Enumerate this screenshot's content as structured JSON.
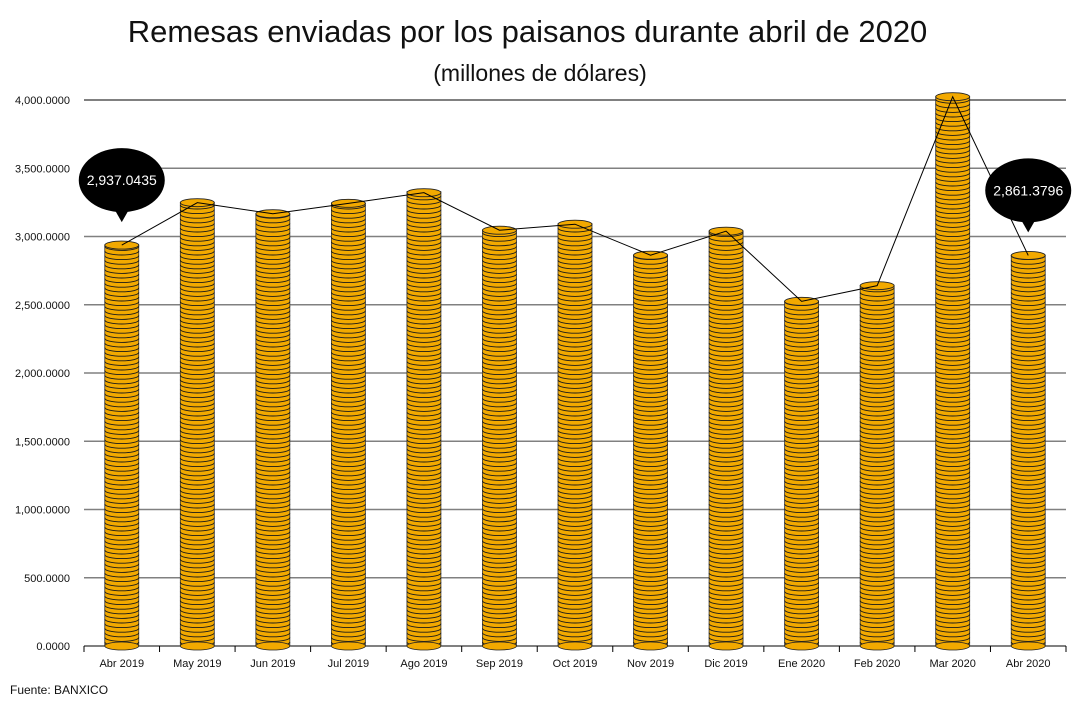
{
  "chart_data": {
    "type": "bar",
    "title": "Remesas enviadas por los paisanos durante abril de 2020",
    "subtitle": "(millones de dólares)",
    "source": "Fuente: BANXICO",
    "categories": [
      "Abr 2019",
      "May 2019",
      "Jun 2019",
      "Jul 2019",
      "Ago 2019",
      "Sep 2019",
      "Oct 2019",
      "Nov 2019",
      "Dic 2019",
      "Ene 2020",
      "Feb 2020",
      "Mar 2020",
      "Abr 2020"
    ],
    "values": [
      2937.0435,
      3248,
      3167,
      3243,
      3321,
      3046,
      3090,
      2863,
      3039,
      2525,
      2640,
      4024,
      2861.3796
    ],
    "overlay_line": true,
    "ylim": [
      0,
      4000
    ],
    "yticks": [
      "0.0000",
      "500.0000",
      "1,000.0000",
      "1,500.0000",
      "2,000.0000",
      "2,500.0000",
      "3,000.0000",
      "3,500.0000",
      "4,000.0000"
    ],
    "ytick_values": [
      0,
      500,
      1000,
      1500,
      2000,
      2500,
      3000,
      3500,
      4000
    ],
    "grid": true,
    "callouts": [
      {
        "index": 0,
        "text": "2,937.0435"
      },
      {
        "index": 12,
        "text": "2,861.3796"
      }
    ],
    "colors": {
      "bar": "#f2a900",
      "bar_stripe": "#1a1a1a",
      "grid": "#808080",
      "callout": "#000000"
    }
  }
}
